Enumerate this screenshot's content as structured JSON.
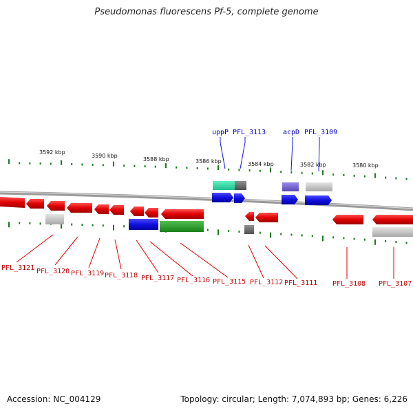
{
  "title": "Pseudomonas fluorescens Pf-5, complete genome",
  "footer": {
    "accession": "Accession: NC_004129",
    "topology": "Topology: circular; Length: 7,074,893 bp; Genes: 6,226"
  },
  "colors": {
    "forward_gene": "#1010e0",
    "reverse_gene": "#e00000",
    "forward_label": "#0000c0",
    "reverse_label": "#c00000",
    "tick": "#1a7a1a",
    "backbone": "#777777"
  },
  "scale_labels": [
    "3592 kbp",
    "3590 kbp",
    "3588 kbp",
    "3586 kbp",
    "3584 kbp",
    "3582 kbp",
    "3580 kbp"
  ],
  "forward_labels": [
    "uppP",
    "PFL_3113",
    "acpD",
    "PFL_3109"
  ],
  "reverse_labels": [
    "PFL_3121",
    "PFL_3120",
    "PFL_3119",
    "PFL_3118",
    "PFL_3117",
    "PFL_3116",
    "PFL_3115",
    "PFL_3112",
    "PFL_3111",
    "PFL_3108",
    "PFL_3107"
  ]
}
